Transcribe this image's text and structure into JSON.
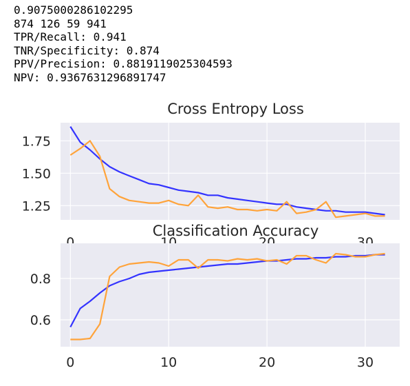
{
  "output_lines": [
    "0.9075000286102295",
    "874 126 59 941",
    "TPR/Recall: 0.941",
    "TNR/Specificity: 0.874",
    "PPV/Precision: 0.8819119025304593",
    "NPV: 0.9367631296891747"
  ],
  "colors": {
    "plot_background": "#eaeaf2",
    "grid": "#ffffff",
    "train_line": "#3333ff",
    "test_line": "#ffa33a"
  },
  "chart_data": [
    {
      "type": "line",
      "title": "Cross Entropy Loss",
      "xlabel": "",
      "ylabel": "",
      "x": [
        0,
        1,
        2,
        3,
        4,
        5,
        6,
        7,
        8,
        9,
        10,
        11,
        12,
        13,
        14,
        15,
        16,
        17,
        18,
        19,
        20,
        21,
        22,
        23,
        24,
        25,
        26,
        27,
        28,
        29,
        30,
        31,
        32
      ],
      "xlim": [
        -1,
        33.5
      ],
      "ylim": [
        1.14,
        1.89
      ],
      "xticks": [
        0,
        10,
        20,
        30
      ],
      "yticks": [
        1.25,
        1.5,
        1.75
      ],
      "ytick_labels": [
        "1.25",
        "1.50",
        "1.75"
      ],
      "grid": true,
      "series": [
        {
          "color": "#3333ff",
          "values": [
            1.86,
            1.74,
            1.68,
            1.61,
            1.55,
            1.51,
            1.48,
            1.45,
            1.42,
            1.41,
            1.39,
            1.37,
            1.36,
            1.35,
            1.33,
            1.33,
            1.31,
            1.3,
            1.29,
            1.28,
            1.27,
            1.26,
            1.26,
            1.24,
            1.23,
            1.22,
            1.21,
            1.21,
            1.2,
            1.2,
            1.2,
            1.19,
            1.18
          ]
        },
        {
          "color": "#ffa33a",
          "values": [
            1.64,
            1.69,
            1.75,
            1.63,
            1.38,
            1.32,
            1.29,
            1.28,
            1.27,
            1.27,
            1.29,
            1.26,
            1.25,
            1.33,
            1.24,
            1.23,
            1.24,
            1.22,
            1.22,
            1.21,
            1.22,
            1.21,
            1.28,
            1.19,
            1.2,
            1.22,
            1.28,
            1.16,
            1.17,
            1.18,
            1.19,
            1.17,
            1.17
          ]
        }
      ]
    },
    {
      "type": "line",
      "title": "Classification Accuracy",
      "xlabel": "",
      "ylabel": "",
      "x": [
        0,
        1,
        2,
        3,
        4,
        5,
        6,
        7,
        8,
        9,
        10,
        11,
        12,
        13,
        14,
        15,
        16,
        17,
        18,
        19,
        20,
        21,
        22,
        23,
        24,
        25,
        26,
        27,
        28,
        29,
        30,
        31,
        32
      ],
      "xlim": [
        -1,
        33.5
      ],
      "ylim": [
        0.47,
        0.97
      ],
      "xticks": [
        0,
        10,
        20,
        30
      ],
      "yticks": [
        0.6,
        0.8
      ],
      "ytick_labels": [
        "0.6",
        "0.8"
      ],
      "grid": true,
      "series": [
        {
          "color": "#3333ff",
          "values": [
            0.565,
            0.655,
            0.69,
            0.73,
            0.765,
            0.785,
            0.8,
            0.82,
            0.83,
            0.835,
            0.84,
            0.845,
            0.85,
            0.855,
            0.86,
            0.865,
            0.87,
            0.87,
            0.875,
            0.88,
            0.885,
            0.885,
            0.89,
            0.895,
            0.895,
            0.9,
            0.9,
            0.905,
            0.905,
            0.91,
            0.91,
            0.915,
            0.915
          ]
        },
        {
          "color": "#ffa33a",
          "values": [
            0.505,
            0.505,
            0.51,
            0.58,
            0.81,
            0.855,
            0.87,
            0.875,
            0.88,
            0.875,
            0.86,
            0.89,
            0.89,
            0.85,
            0.89,
            0.89,
            0.885,
            0.895,
            0.89,
            0.895,
            0.885,
            0.89,
            0.87,
            0.91,
            0.91,
            0.89,
            0.875,
            0.92,
            0.915,
            0.905,
            0.905,
            0.915,
            0.92
          ]
        }
      ]
    }
  ]
}
